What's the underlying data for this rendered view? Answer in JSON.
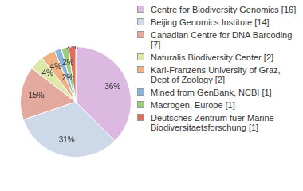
{
  "chart_data": {
    "type": "pie",
    "categories": [
      "Centre for Biodiversity Genomics [16]",
      "Beijing Genomics Institute [14]",
      "Canadian Centre for DNA Barcoding [7]",
      "Naturalis Biodiversity Center [2]",
      "Karl-Franzens University of Graz, Dept of Zoology [2]",
      "Mined from GenBank, NCBI [1]",
      "Macrogen, Europe [1]",
      "Deutsches Zentrum fuer Marine Biodiversitaetsforschung [1]"
    ],
    "values": [
      36,
      31,
      15,
      4,
      4,
      2,
      2,
      2
    ],
    "value_labels": [
      "36%",
      "31%",
      "15%",
      "4%",
      "4%",
      "2%",
      "2%",
      "2%"
    ],
    "colors": [
      "#dcb9e0",
      "#cdd9e8",
      "#e3a89e",
      "#dfe7a9",
      "#efb283",
      "#86b4db",
      "#9ccb7b",
      "#df6f5b"
    ],
    "data_labels": true,
    "legend": "right"
  }
}
